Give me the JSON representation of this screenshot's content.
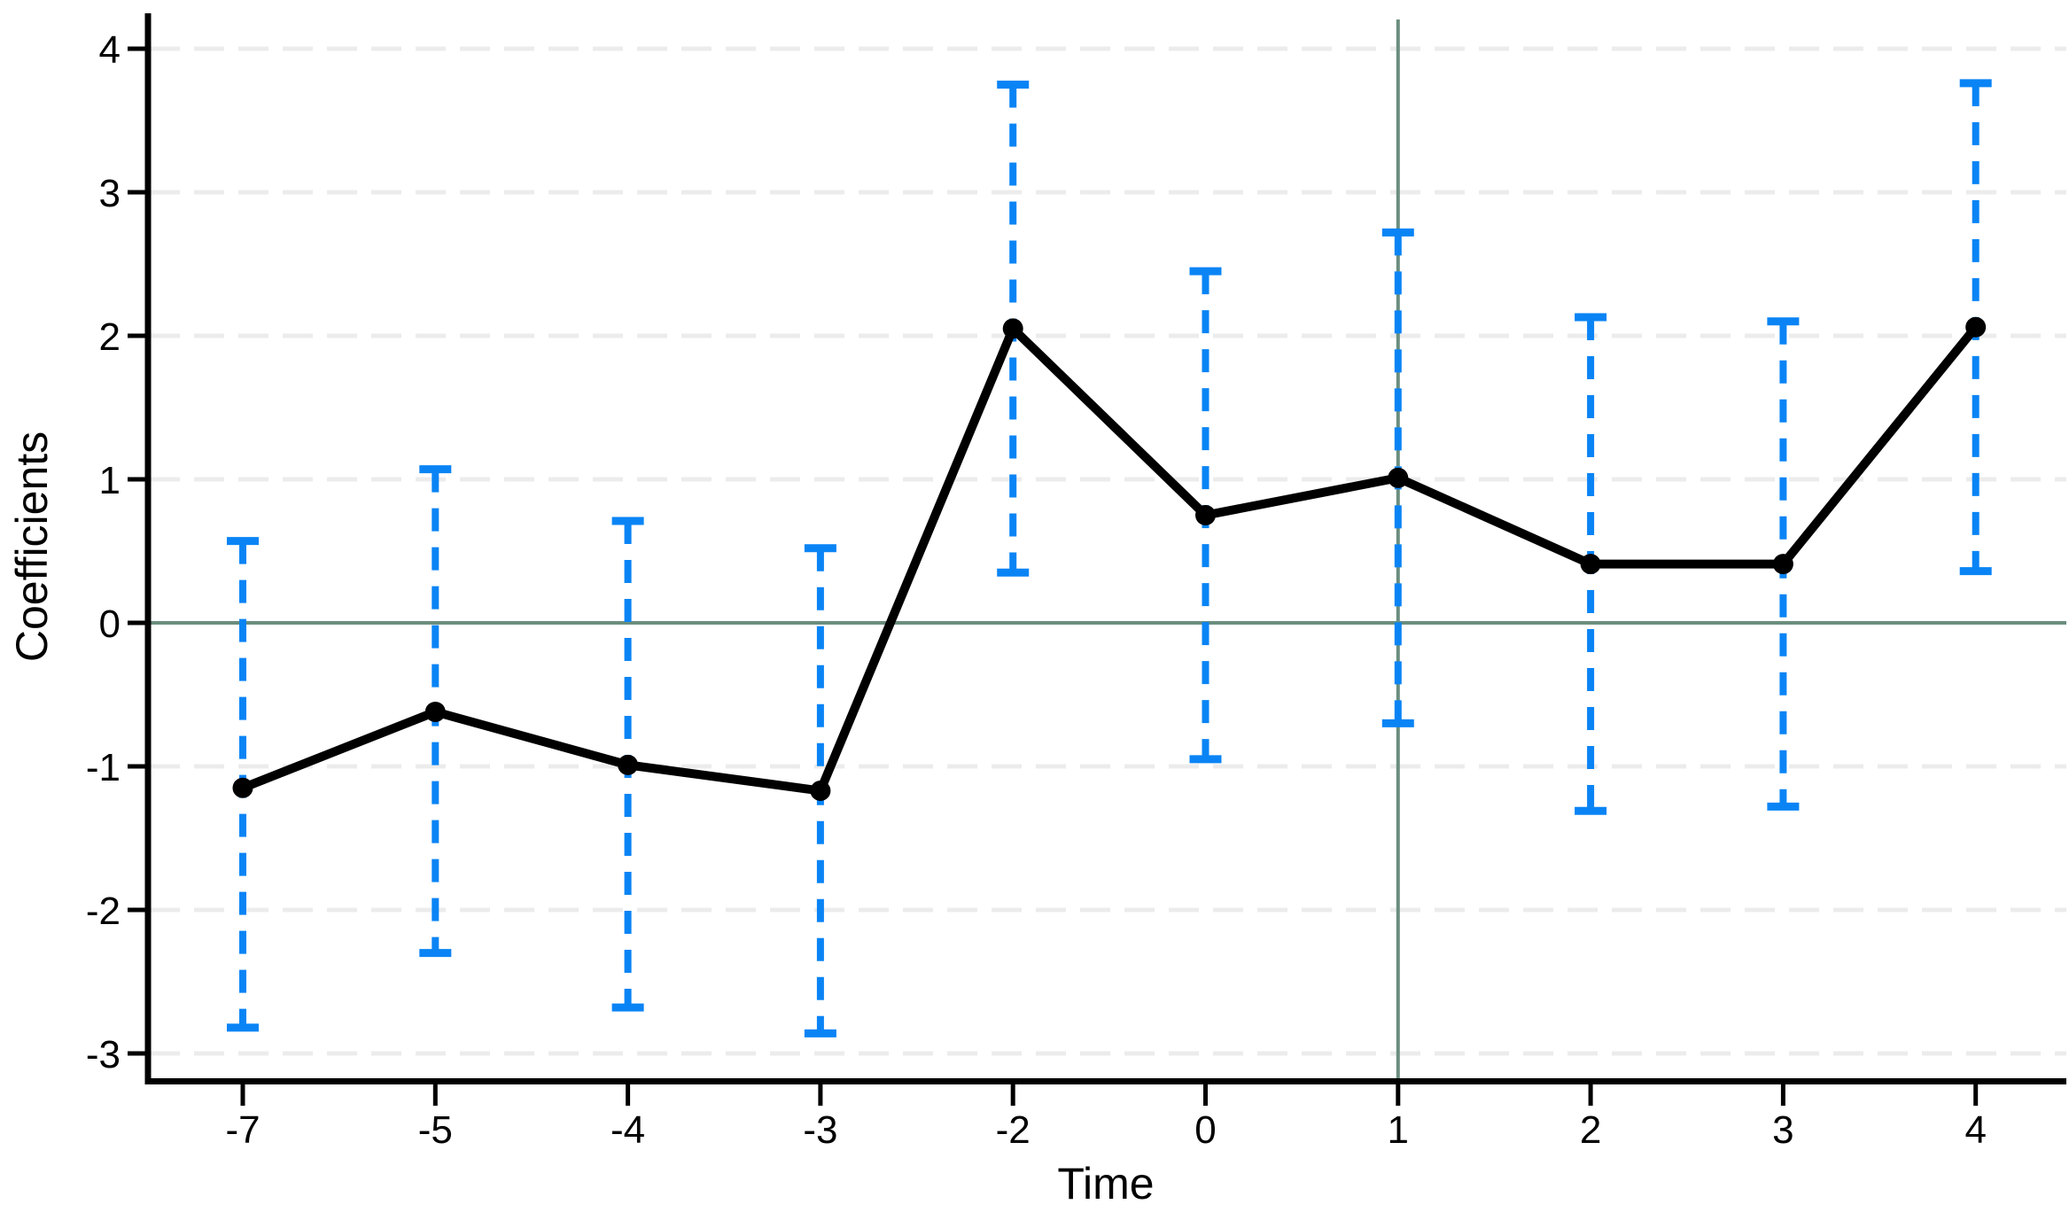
{
  "figure": {
    "background": "#ffffff"
  },
  "chart_data": {
    "type": "line",
    "subtype": "event-study-coefficients-with-error-bars",
    "title": "",
    "xlabel": "Time",
    "ylabel": "Coefficients",
    "x_tick_labels": [
      "-7",
      "-5",
      "-4",
      "-3",
      "-2",
      "0",
      "1",
      "2",
      "3",
      "4"
    ],
    "y_ticks": [
      4,
      3,
      2,
      1,
      0,
      -1,
      -2,
      -3
    ],
    "ylim": [
      -3.2,
      4.25
    ],
    "grid": "horizontal-dashed",
    "legend": "none",
    "categories": [
      -7,
      -5,
      -4,
      -3,
      -2,
      0,
      1,
      2,
      3,
      4
    ],
    "series": [
      {
        "name": "coefficient",
        "style": "solid-line-with-circle-markers",
        "values": [
          -1.15,
          -0.62,
          -0.99,
          -1.17,
          2.05,
          0.75,
          1.01,
          0.41,
          0.41,
          2.06
        ]
      },
      {
        "name": "confidence-interval",
        "style": "dashed-error-bars-with-caps",
        "low": [
          -2.82,
          -2.3,
          -2.68,
          -2.86,
          0.35,
          -0.95,
          -0.7,
          -1.31,
          -1.28,
          0.36
        ],
        "high": [
          0.57,
          1.07,
          0.71,
          0.52,
          3.75,
          2.45,
          2.72,
          2.13,
          2.1,
          3.76
        ]
      }
    ],
    "reference_lines": [
      {
        "axis": "y",
        "value": 0,
        "style": "solid"
      },
      {
        "axis": "x",
        "value": "1",
        "style": "solid"
      }
    ],
    "colors": {
      "line": "#000000",
      "marker": "#000000",
      "error_bar": "#0a84f5",
      "reference": "#6b8e7e",
      "gridline": "#ececec",
      "axis": "#000000",
      "text": "#000000"
    }
  }
}
